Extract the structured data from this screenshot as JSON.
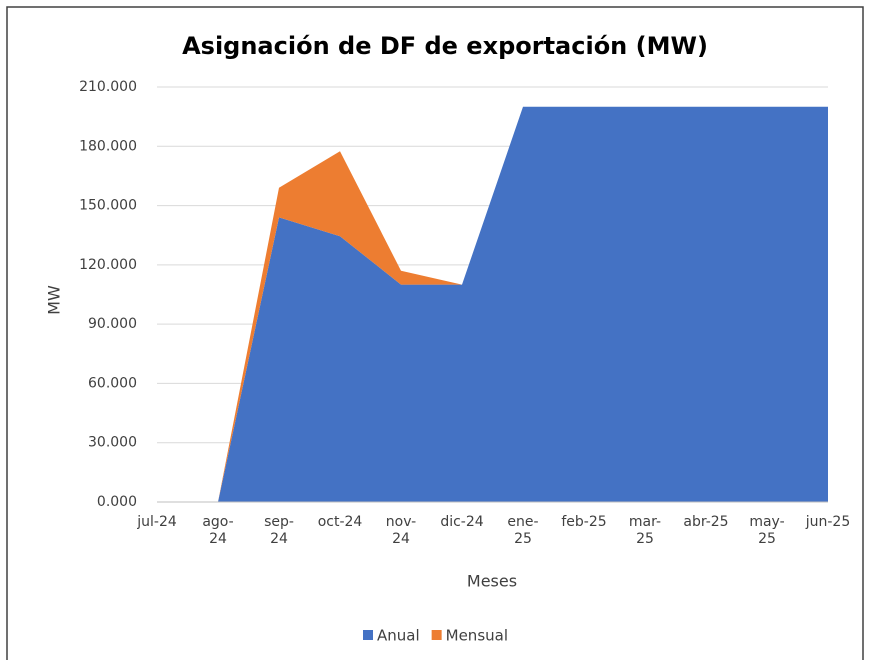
{
  "chart_data": {
    "type": "stacked_area",
    "title": "Asignación de DF de exportación (MW)",
    "x_label": "Meses",
    "y_label": "MW",
    "categories": [
      "jul-24",
      "ago-24",
      "sep-24",
      "oct-24",
      "nov-24",
      "dic-24",
      "ene-25",
      "feb-25",
      "mar-25",
      "abr-25",
      "may-25",
      "jun-25"
    ],
    "series": [
      {
        "name": "Anual",
        "color": "#4472c4",
        "values": [
          null,
          0,
          144,
          134.5,
          110,
          110,
          200,
          200,
          200,
          200,
          200,
          200
        ]
      },
      {
        "name": "Mensual",
        "color": "#ed7d31",
        "values": [
          null,
          0,
          15,
          43,
          7,
          0,
          0,
          0,
          0,
          0,
          0,
          0
        ]
      }
    ],
    "ylim": [
      0,
      210
    ],
    "yticks": [
      {
        "value": 0,
        "label": "0.000"
      },
      {
        "value": 30,
        "label": "30.000"
      },
      {
        "value": 60,
        "label": "60.000"
      },
      {
        "value": 90,
        "label": "90.000"
      },
      {
        "value": 120,
        "label": "120.000"
      },
      {
        "value": 150,
        "label": "150.000"
      },
      {
        "value": 180,
        "label": "180.000"
      },
      {
        "value": 210,
        "label": "210.000"
      }
    ],
    "grid": true
  }
}
